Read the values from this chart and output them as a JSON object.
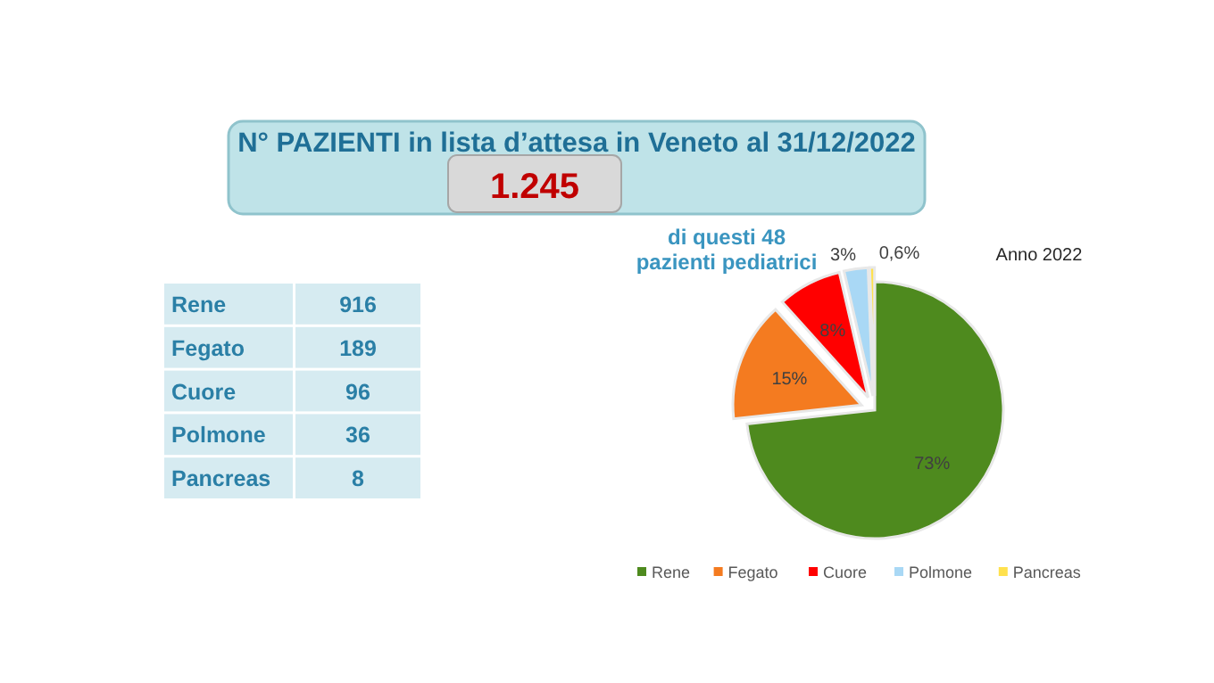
{
  "chart_data": [
    {
      "type": "other",
      "title": "N° PAZIENTI in lista d’attesa in Veneto al 31/12/2022",
      "subtitle": "1.245",
      "annotations": [
        "di questi 48 pazienti pediatrici"
      ],
      "categories": [
        "Rene",
        "Fegato",
        "Cuore",
        "Polmone",
        "Pancreas"
      ],
      "values": [
        916,
        189,
        96,
        36,
        8
      ],
      "data_labels": true
    },
    {
      "type": "pie",
      "title": "Anno 2022",
      "categories": [
        "Rene",
        "Fegato",
        "Cuore",
        "Polmone",
        "Pancreas"
      ],
      "values": [
        73,
        15,
        8,
        3,
        0.6
      ],
      "colors": [
        "#4e8a1e",
        "#f47b20",
        "#ff0000",
        "#a9d8f5",
        "#ffe14d"
      ],
      "value_labels": [
        "73%",
        "15%",
        "8%",
        "3%",
        "0,6%"
      ],
      "legend": "bottom"
    }
  ]
}
